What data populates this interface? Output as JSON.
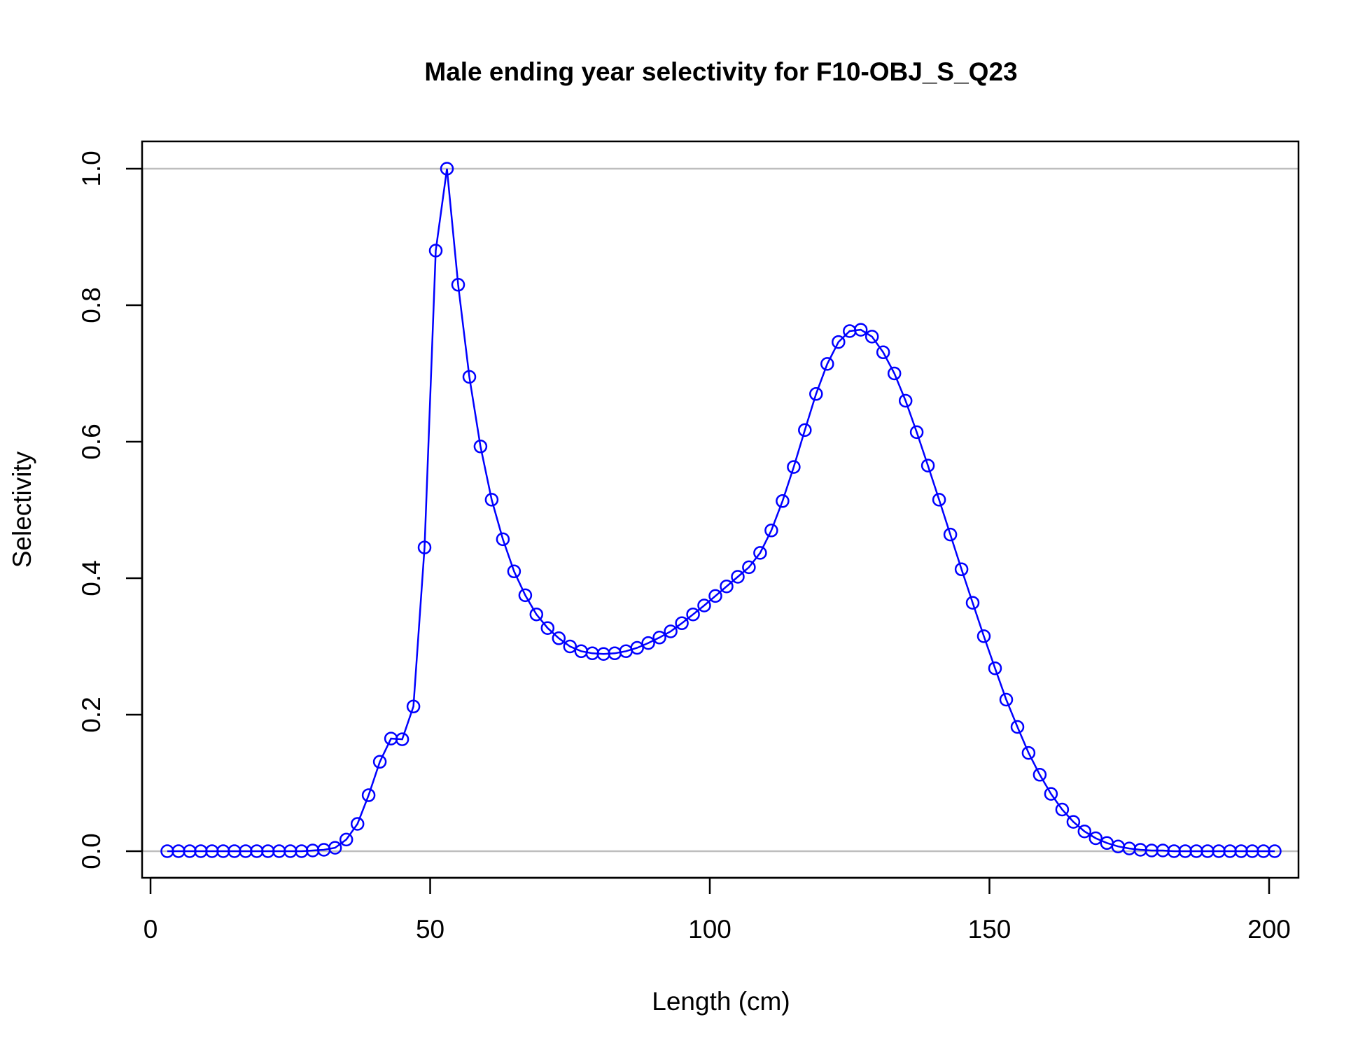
{
  "chart_data": {
    "type": "line",
    "title": "Male ending year selectivity for F10-OBJ_S_Q23",
    "xlabel": "Length (cm)",
    "ylabel": "Selectivity",
    "xlim": [
      3,
      201
    ],
    "ylim": [
      0,
      1
    ],
    "x_ticks": [
      0,
      50,
      100,
      150,
      200
    ],
    "x_tick_labels": [
      "0",
      "50",
      "100",
      "150",
      "200"
    ],
    "y_ticks": [
      0,
      0.2,
      0.4,
      0.6,
      0.8,
      1.0
    ],
    "y_tick_labels": [
      "0.0",
      "0.2",
      "0.4",
      "0.6",
      "0.8",
      "1.0"
    ],
    "reference_lines_y": [
      0,
      1
    ],
    "grid": false,
    "markers": "open-circle",
    "colors": {
      "series": "#0000ff",
      "reference": "#bebebe",
      "axes": "#000000"
    },
    "series": [
      {
        "x": [
          3,
          5,
          7,
          9,
          11,
          13,
          15,
          17,
          19,
          21,
          23,
          25,
          27,
          29,
          31,
          33,
          35,
          37,
          39,
          41,
          43,
          45,
          47,
          49,
          51,
          53,
          55,
          57,
          59,
          61,
          63,
          65,
          67,
          69,
          71,
          73,
          75,
          77,
          79,
          81,
          83,
          85,
          87,
          89,
          91,
          93,
          95,
          97,
          99,
          101,
          103,
          105,
          107,
          109,
          111,
          113,
          115,
          117,
          119,
          121,
          123,
          125,
          127,
          129,
          131,
          133,
          135,
          137,
          139,
          141,
          143,
          145,
          147,
          149,
          151,
          153,
          155,
          157,
          159,
          161,
          163,
          165,
          167,
          169,
          171,
          173,
          175,
          177,
          179,
          181,
          183,
          185,
          187,
          189,
          191,
          193,
          195,
          197,
          199,
          201
        ],
        "values": [
          0,
          0,
          0,
          0,
          0,
          0,
          0,
          0,
          0,
          0,
          0,
          0,
          0,
          0.001,
          0.002,
          0.005,
          0.017,
          0.04,
          0.082,
          0.131,
          0.165,
          0.164,
          0.212,
          0.445,
          0.88,
          1.0,
          0.83,
          0.695,
          0.593,
          0.515,
          0.457,
          0.41,
          0.375,
          0.347,
          0.327,
          0.312,
          0.3,
          0.293,
          0.29,
          0.289,
          0.29,
          0.293,
          0.298,
          0.305,
          0.313,
          0.322,
          0.334,
          0.347,
          0.36,
          0.374,
          0.388,
          0.402,
          0.416,
          0.437,
          0.47,
          0.513,
          0.563,
          0.617,
          0.67,
          0.714,
          0.746,
          0.762,
          0.764,
          0.754,
          0.731,
          0.7,
          0.66,
          0.614,
          0.565,
          0.515,
          0.464,
          0.413,
          0.364,
          0.315,
          0.268,
          0.222,
          0.182,
          0.144,
          0.112,
          0.084,
          0.061,
          0.043,
          0.029,
          0.019,
          0.012,
          0.007,
          0.004,
          0.002,
          0.001,
          0.001,
          0,
          0,
          0,
          0,
          0,
          0,
          0,
          0,
          0,
          0
        ]
      }
    ]
  }
}
